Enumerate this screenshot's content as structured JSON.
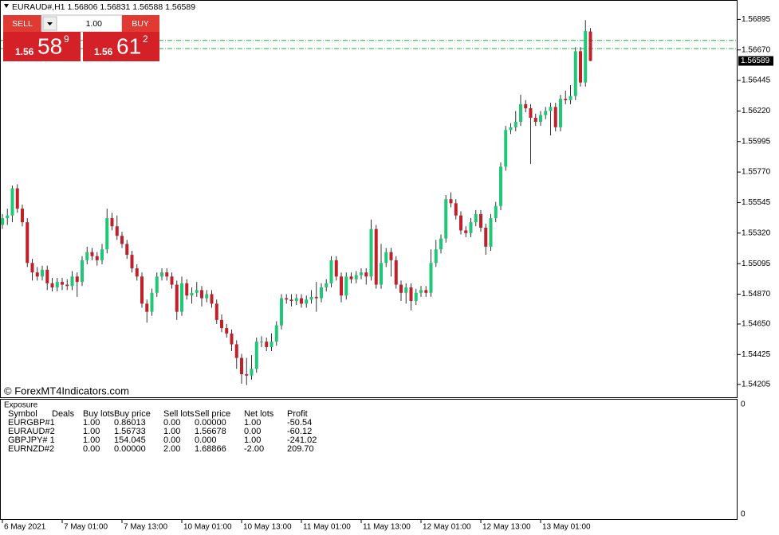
{
  "chart_data": {
    "type": "candlestick",
    "title": "EURAUD#,H1",
    "open": [
      1.5538,
      1.5543,
      1.5545,
      1.5565,
      1.555,
      1.554,
      1.551,
      1.5503,
      1.55,
      1.5505,
      1.5495,
      1.5492,
      1.5496,
      1.5494,
      1.5493,
      1.55,
      1.5496,
      1.5512,
      1.5518,
      1.5515,
      1.5512,
      1.552,
      1.5543,
      1.5537,
      1.553,
      1.5524,
      1.5516,
      1.5506,
      1.55,
      1.548,
      1.5474,
      1.5488,
      1.55,
      1.5503,
      1.55,
      1.5494,
      1.5474,
      1.5495,
      1.5486,
      1.5488,
      1.549,
      1.5484,
      1.5487,
      1.548,
      1.5468,
      1.5462,
      1.5458,
      1.545,
      1.544,
      1.5428,
      1.5427,
      1.5432,
      1.5452,
      1.5452,
      1.5448,
      1.5452,
      1.5464,
      1.5484,
      1.5483,
      1.5482,
      1.5484,
      1.548,
      1.5483,
      1.5485,
      1.5484,
      1.5492,
      1.5495,
      1.5512,
      1.55,
      1.5486,
      1.55,
      1.5498,
      1.5501,
      1.5503,
      1.55,
      1.5535,
      1.5494,
      1.551,
      1.5518,
      1.5512,
      1.5494,
      1.5488,
      1.5492,
      1.5482,
      1.5488,
      1.549,
      1.5488,
      1.551,
      1.552,
      1.5528,
      1.5557,
      1.5554,
      1.5545,
      1.5534,
      1.5532,
      1.554,
      1.5546,
      1.5536,
      1.5522,
      1.5543,
      1.5552,
      1.5581,
      1.5608,
      1.561,
      1.5614,
      1.5627,
      1.5624,
      1.5617,
      1.5614,
      1.5619,
      1.5622,
      1.5625,
      1.561,
      1.5631,
      1.563,
      1.5633,
      1.5666,
      1.5643,
      1.56806
    ],
    "high": [
      1.5546,
      1.555,
      1.5567,
      1.5568,
      1.5553,
      1.5543,
      1.5513,
      1.5507,
      1.5508,
      1.5508,
      1.5499,
      1.5499,
      1.5499,
      1.5498,
      1.5504,
      1.5503,
      1.5515,
      1.5522,
      1.5521,
      1.5518,
      1.5524,
      1.555,
      1.5547,
      1.5545,
      1.5533,
      1.5527,
      1.5519,
      1.5509,
      1.5503,
      1.5483,
      1.5491,
      1.5503,
      1.5506,
      1.5506,
      1.5503,
      1.5497,
      1.55,
      1.5498,
      1.5492,
      1.5496,
      1.5493,
      1.549,
      1.549,
      1.5483,
      1.5472,
      1.5465,
      1.5461,
      1.5453,
      1.5443,
      1.544,
      1.5442,
      1.5455,
      1.5456,
      1.5455,
      1.5458,
      1.5467,
      1.5487,
      1.5487,
      1.5487,
      1.5487,
      1.5487,
      1.5486,
      1.549,
      1.5496,
      1.5495,
      1.5498,
      1.5515,
      1.5515,
      1.5503,
      1.5503,
      1.5503,
      1.5504,
      1.5506,
      1.5506,
      1.5542,
      1.5538,
      1.5524,
      1.5521,
      1.5521,
      1.5515,
      1.5497,
      1.5495,
      1.5495,
      1.5491,
      1.5493,
      1.5493,
      1.552,
      1.5527,
      1.5531,
      1.556,
      1.5562,
      1.5557,
      1.5548,
      1.5537,
      1.5543,
      1.5549,
      1.5549,
      1.5539,
      1.5546,
      1.5555,
      1.5584,
      1.5611,
      1.5613,
      1.5622,
      1.5634,
      1.563,
      1.5627,
      1.562,
      1.5622,
      1.5625,
      1.5628,
      1.5628,
      1.5634,
      1.5637,
      1.5641,
      1.5669,
      1.5669,
      1.5689,
      1.56831
    ],
    "low": [
      1.5535,
      1.5538,
      1.554,
      1.5547,
      1.5537,
      1.5507,
      1.5497,
      1.5497,
      1.5497,
      1.549,
      1.5489,
      1.5489,
      1.549,
      1.549,
      1.549,
      1.5485,
      1.5493,
      1.5509,
      1.5512,
      1.5508,
      1.5509,
      1.5517,
      1.5534,
      1.5527,
      1.5521,
      1.5513,
      1.5503,
      1.5497,
      1.5477,
      1.5466,
      1.5471,
      1.5485,
      1.5497,
      1.5497,
      1.5491,
      1.5468,
      1.5471,
      1.5483,
      1.548,
      1.5485,
      1.5478,
      1.5481,
      1.5477,
      1.5465,
      1.5459,
      1.5455,
      1.5445,
      1.5432,
      1.5421,
      1.542,
      1.5424,
      1.5429,
      1.5448,
      1.5445,
      1.5445,
      1.5449,
      1.5461,
      1.548,
      1.5478,
      1.5479,
      1.5477,
      1.5477,
      1.548,
      1.5474,
      1.5481,
      1.5489,
      1.5492,
      1.5497,
      1.5481,
      1.5483,
      1.5495,
      1.5495,
      1.5498,
      1.5494,
      1.5497,
      1.5491,
      1.5491,
      1.5507,
      1.55,
      1.5491,
      1.5482,
      1.548,
      1.5475,
      1.5479,
      1.5485,
      1.5485,
      1.5485,
      1.5507,
      1.5517,
      1.5525,
      1.5551,
      1.5542,
      1.5531,
      1.5529,
      1.5529,
      1.5537,
      1.5533,
      1.5516,
      1.5519,
      1.554,
      1.5549,
      1.5578,
      1.5605,
      1.5607,
      1.5611,
      1.5621,
      1.5583,
      1.5611,
      1.5611,
      1.5616,
      1.5604,
      1.5607,
      1.5607,
      1.5627,
      1.5627,
      1.563,
      1.564,
      1.564,
      1.56588
    ],
    "close": [
      1.5543,
      1.5545,
      1.5565,
      1.555,
      1.554,
      1.551,
      1.5503,
      1.55,
      1.5505,
      1.5495,
      1.5492,
      1.5496,
      1.5494,
      1.5493,
      1.55,
      1.5496,
      1.5512,
      1.5518,
      1.5515,
      1.5512,
      1.552,
      1.5543,
      1.5537,
      1.553,
      1.5524,
      1.5516,
      1.5506,
      1.55,
      1.548,
      1.5474,
      1.5488,
      1.55,
      1.5503,
      1.55,
      1.5494,
      1.5474,
      1.5495,
      1.5486,
      1.5488,
      1.549,
      1.5484,
      1.5487,
      1.548,
      1.5468,
      1.5462,
      1.5458,
      1.545,
      1.544,
      1.5428,
      1.5427,
      1.5432,
      1.5452,
      1.5452,
      1.5448,
      1.5452,
      1.5464,
      1.5484,
      1.5483,
      1.5482,
      1.5484,
      1.548,
      1.5483,
      1.5485,
      1.5484,
      1.5492,
      1.5495,
      1.5512,
      1.55,
      1.5486,
      1.55,
      1.5498,
      1.5501,
      1.5503,
      1.55,
      1.5535,
      1.5494,
      1.551,
      1.5518,
      1.5512,
      1.5494,
      1.5488,
      1.5492,
      1.5482,
      1.5488,
      1.549,
      1.5488,
      1.551,
      1.552,
      1.5528,
      1.5557,
      1.5554,
      1.5545,
      1.5534,
      1.5532,
      1.554,
      1.5546,
      1.5536,
      1.5522,
      1.5543,
      1.5552,
      1.5581,
      1.5608,
      1.561,
      1.5614,
      1.5627,
      1.5624,
      1.5617,
      1.5614,
      1.5619,
      1.5622,
      1.5625,
      1.561,
      1.5631,
      1.563,
      1.5633,
      1.5666,
      1.5643,
      1.5681,
      1.56589
    ],
    "up_color": "#1fc777",
    "down_color": "#c0202a",
    "ylim": [
      1.5411,
      1.5695
    ],
    "yticks": [
      {
        "value": 1.56895,
        "label": "1.56895"
      },
      {
        "value": 1.5667,
        "label": "1.56670"
      },
      {
        "value": 1.56445,
        "label": "1.56445"
      },
      {
        "value": 1.5622,
        "label": "1.56220"
      },
      {
        "value": 1.55995,
        "label": "1.55995"
      },
      {
        "value": 1.5577,
        "label": "1.55770"
      },
      {
        "value": 1.55545,
        "label": "1.55545"
      },
      {
        "value": 1.5532,
        "label": "1.55320"
      },
      {
        "value": 1.55095,
        "label": "1.55095"
      },
      {
        "value": 1.5487,
        "label": "1.54870"
      },
      {
        "value": 1.5465,
        "label": "1.54650"
      },
      {
        "value": 1.54425,
        "label": "1.54425"
      },
      {
        "value": 1.54205,
        "label": "1.54205"
      }
    ],
    "xticks": [
      {
        "value": 0,
        "label": "6 May 2021"
      },
      {
        "value": 12,
        "label": "7 May 01:00"
      },
      {
        "value": 24,
        "label": "7 May 13:00"
      },
      {
        "value": 36,
        "label": "10 May 01:00"
      },
      {
        "value": 48,
        "label": "10 May 13:00"
      },
      {
        "value": 60,
        "label": "11 May 01:00"
      },
      {
        "value": 72,
        "label": "11 May 13:00"
      },
      {
        "value": 84,
        "label": "12 May 01:00"
      },
      {
        "value": 96,
        "label": "12 May 13:00"
      },
      {
        "value": 108,
        "label": "13 May 01:00"
      }
    ],
    "levels": [
      1.5674,
      1.5668
    ],
    "level_color": "#22aa44"
  },
  "trade_panel": {
    "sell": "SELL",
    "buy": "BUY",
    "lots": "1.00",
    "sell_price": {
      "prefix": "1.56",
      "big": "58",
      "small": "9"
    },
    "buy_price": {
      "prefix": "1.56",
      "big": "61",
      "small": "2"
    }
  },
  "watermark": "© ForexMT4Indicators.com",
  "exposure": {
    "title": "Exposure",
    "columns": [
      "Symbol",
      "Deals",
      "Buy lots",
      "Buy price",
      "Sell lots",
      "Sell price",
      "Net lots",
      "Profit"
    ],
    "rows": [
      [
        "EURGBP#1",
        "1.00",
        "0.86013",
        "0.00",
        "0.00000",
        "1.00",
        "-50.54"
      ],
      [
        "EURAUD#2",
        "1.00",
        "1.56733",
        "1.00",
        "1.56678",
        "0.00",
        "-60.12"
      ],
      [
        "GBPJPY# 1",
        "1.00",
        "154.045",
        "0.00",
        "0.000",
        "1.00",
        "-241.02"
      ],
      [
        "EURNZD#2",
        "0.00",
        "0.00000",
        "2.00",
        "1.68866",
        "-2.00",
        "209.70"
      ]
    ],
    "scale_labels": [
      "0",
      "0"
    ]
  }
}
